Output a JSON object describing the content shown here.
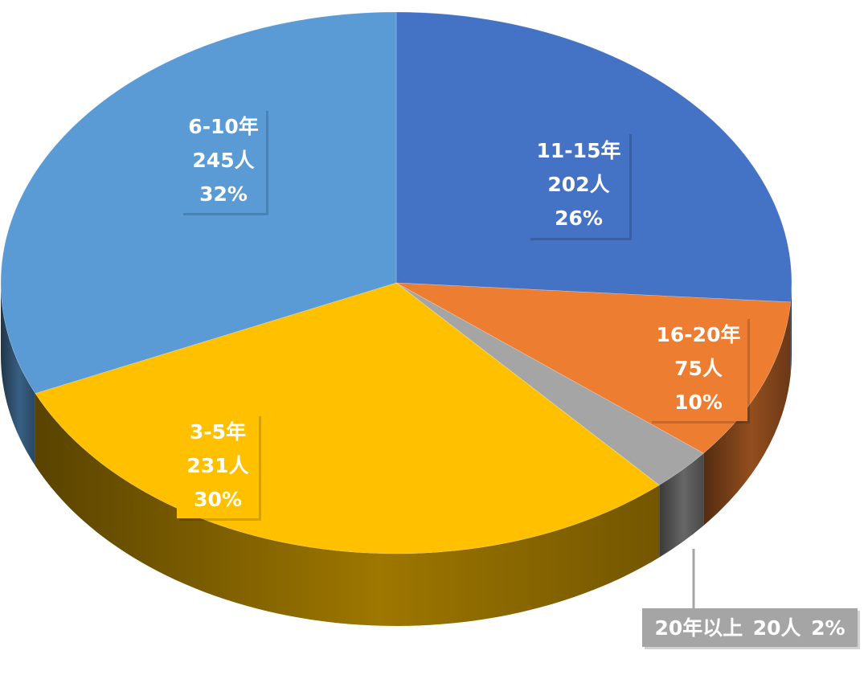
{
  "chart_data": {
    "type": "pie",
    "style": "3d",
    "title": "",
    "legend": "none",
    "start_angle_deg": 0,
    "direction": "clockwise",
    "slices": [
      {
        "label": "11-15年",
        "count": 202,
        "count_text": "202人",
        "percent": 26,
        "percent_text": "26%",
        "color": "#4472C4"
      },
      {
        "label": "16-20年",
        "count": 75,
        "count_text": "75人",
        "percent": 10,
        "percent_text": "10%",
        "color": "#ED7D31"
      },
      {
        "label": "20年以上",
        "count": 20,
        "count_text": "20人",
        "percent": 2,
        "percent_text": "2%",
        "color": "#A5A5A5"
      },
      {
        "label": "3-5年",
        "count": 231,
        "count_text": "231人",
        "percent": 30,
        "percent_text": "30%",
        "color": "#FFC000"
      },
      {
        "label": "6-10年",
        "count": 245,
        "count_text": "245人",
        "percent": 32,
        "percent_text": "32%",
        "color": "#5B9BD5"
      }
    ]
  }
}
